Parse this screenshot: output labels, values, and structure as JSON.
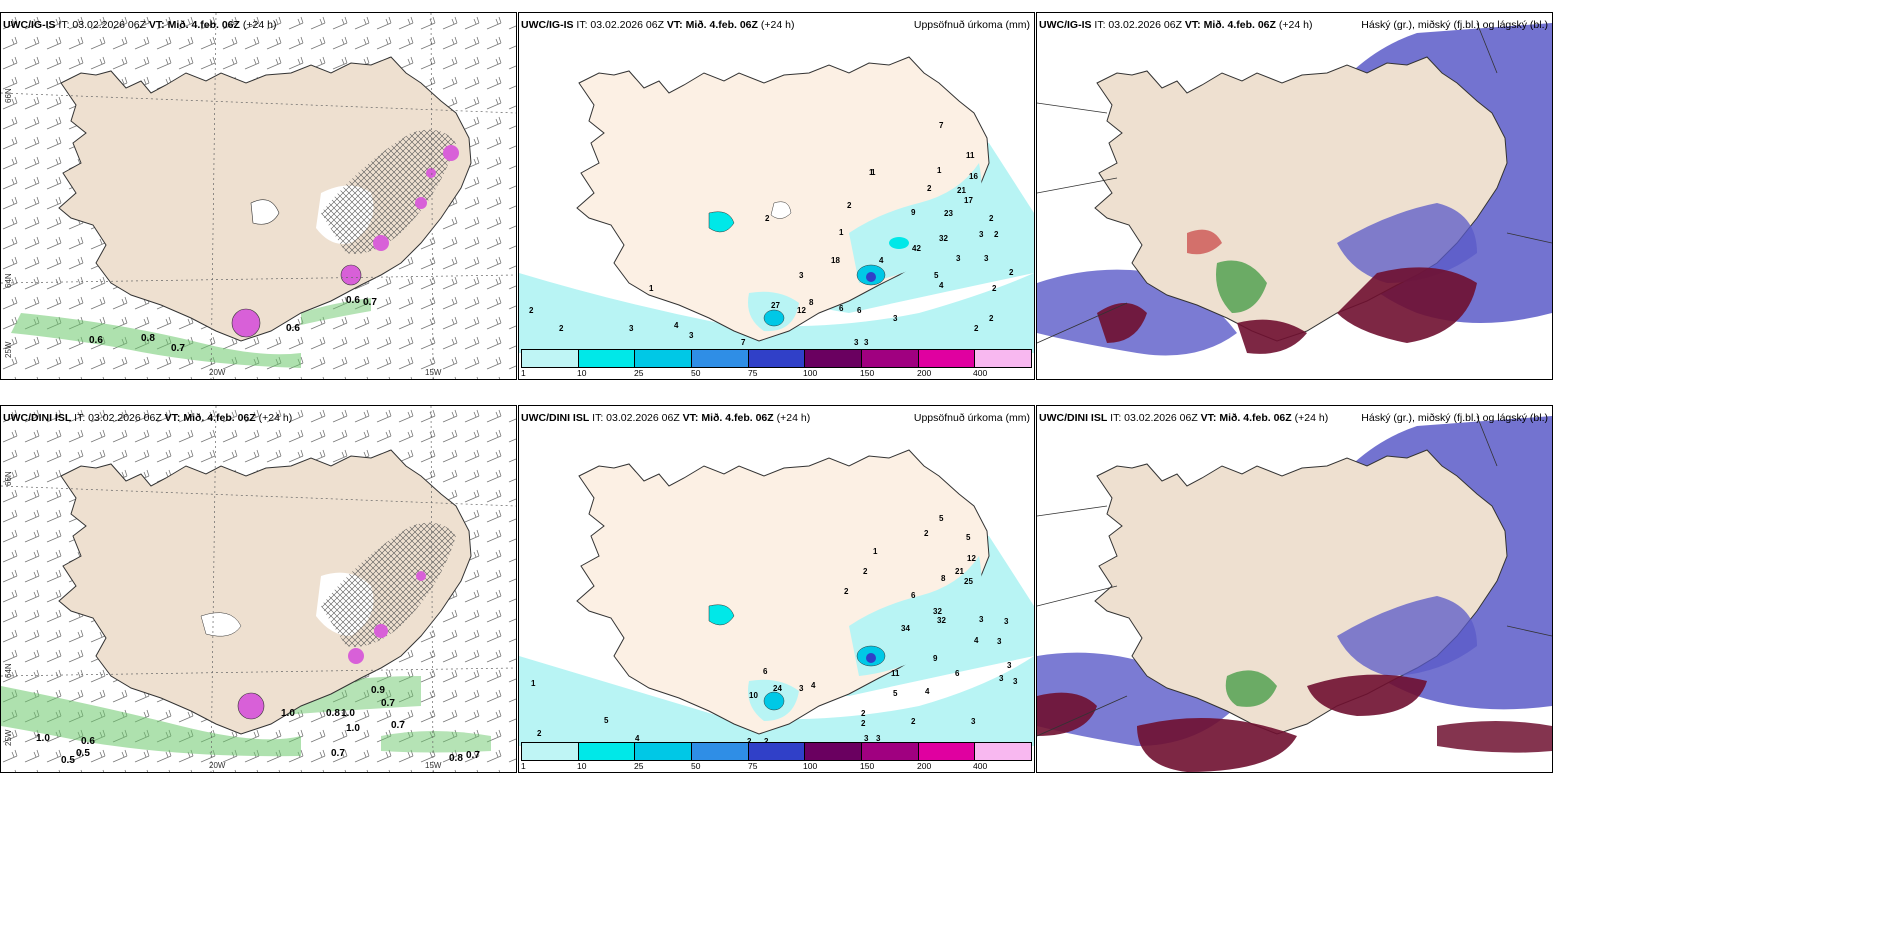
{
  "rows": [
    {
      "model": "UWC/IG-IS",
      "it": "IT: 03.02.2026 06Z",
      "vt_label": "VT:",
      "vt": "Mið. 4.feb. 06Z",
      "lead": "(+24 h)",
      "precip_values": [
        "7",
        "11",
        "16",
        "21",
        "17",
        "23",
        "32",
        "42",
        "4",
        "1",
        "2",
        "1",
        "2",
        "3",
        "2",
        "2",
        "9",
        "1",
        "3",
        "8",
        "27",
        "12",
        "18",
        "1",
        "2",
        "2",
        "2",
        "3",
        "3",
        "3",
        "4",
        "5",
        "2",
        "2",
        "2",
        "1",
        "3",
        "3",
        "4",
        "3",
        "3",
        "7",
        "6",
        "6",
        "2"
      ],
      "wind_values": [
        "0.6",
        "0.8",
        "0.6",
        "0.7",
        "0.6",
        "0.7"
      ]
    },
    {
      "model": "UWC/DINI ISL",
      "it": "IT: 03.02.2026 06Z",
      "vt_label": "VT:",
      "vt": "Mið. 4.feb. 06Z",
      "lead": "(+24 h)",
      "precip_values": [
        "5",
        "2",
        "5",
        "12",
        "21",
        "25",
        "8",
        "6",
        "32",
        "32",
        "34",
        "11",
        "1",
        "2",
        "2",
        "3",
        "3",
        "4",
        "3",
        "3",
        "3",
        "3",
        "3",
        "6",
        "9",
        "24",
        "10",
        "3",
        "4",
        "6",
        "5",
        "1",
        "2",
        "2",
        "2",
        "2",
        "2",
        "3",
        "3",
        "4",
        "4",
        "5",
        "2"
      ],
      "wind_values": [
        "0.5",
        "0.9",
        "1.0",
        "0.8",
        "1.0",
        "0.7",
        "1.0",
        "0.6",
        "0.7",
        "0.5",
        "0.7",
        "1.0",
        "0.8",
        "0.7"
      ]
    }
  ],
  "precip_title": "Uppsöfnuð úrkoma (mm)",
  "cloud_title": "Háský (gr.), miðský (fj.bl.) og lágský (bl.)",
  "colorbar": {
    "labels": [
      "1",
      "10",
      "25",
      "50",
      "75",
      "100",
      "150",
      "200",
      "400"
    ],
    "colors": [
      "#bff5f5",
      "#00e8e8",
      "#00c8e6",
      "#2f8ee6",
      "#3040c8",
      "#6a0060",
      "#a00080",
      "#e000a0",
      "#f8b8f0"
    ]
  },
  "axis_ticks": {
    "lat_top": "66N",
    "lat_mid": "64N",
    "lat_low": "25W",
    "lon_left": "20W",
    "lon_right": "15W"
  },
  "colors": {
    "land": "#eee0d0",
    "land_precip": "#fcf0e4",
    "coast": "#333333",
    "wind_green": "#6cc86c",
    "pink": "#d860d8",
    "cyan_light": "#b8f4f4",
    "cloud_high": "#6f1030",
    "cloud_mid": "#4a9e4a",
    "cloud_low": "#5a5ac8"
  }
}
